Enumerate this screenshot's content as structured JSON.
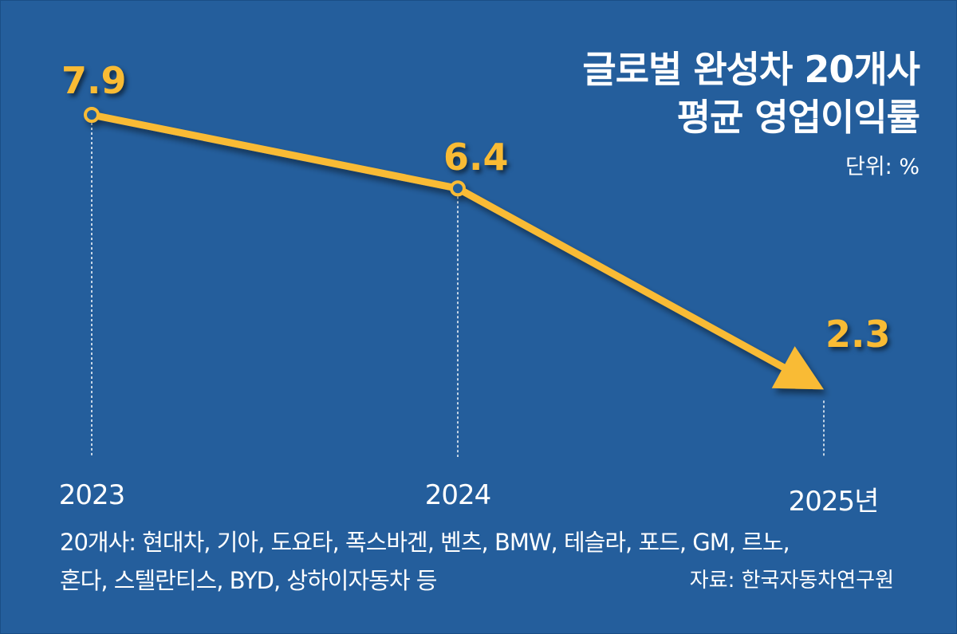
{
  "chart_data": {
    "type": "line",
    "title_lines": [
      "글로벌 완성차 20개사",
      "평균 영업이익률"
    ],
    "unit": "단위: %",
    "categories": [
      "2023",
      "2024",
      "2025년"
    ],
    "values": [
      7.9,
      6.4,
      2.3
    ],
    "value_labels": [
      "7.9",
      "6.4",
      "2.3"
    ],
    "colors": {
      "line": "#f9bb34",
      "background": "#245e9c",
      "text": "#ffffff"
    },
    "note_lines": [
      "20개사: 현대차, 기아, 도요타, 폭스바겐, 벤츠, BMW, 테슬라, 포드, GM, 르노,",
      "혼다, 스텔란티스, BYD, 상하이자동차 등"
    ],
    "source": "자료: 한국자동차연구원"
  }
}
